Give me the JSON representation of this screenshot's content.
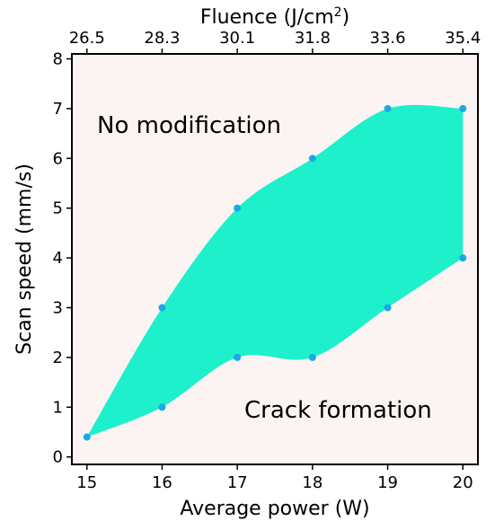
{
  "chart_data": {
    "type": "area",
    "xlabel": "Average power (W)",
    "ylabel": "Scan speed (mm/s)",
    "top_axis_label": "Fluence (J/cm",
    "top_axis_label_sup": "2",
    "top_axis_label_end": ")",
    "xlim": [
      14.8,
      20.2
    ],
    "ylim": [
      -0.15,
      8.1
    ],
    "x_ticks": [
      15,
      16,
      17,
      18,
      19,
      20
    ],
    "y_ticks": [
      0,
      1,
      2,
      3,
      4,
      5,
      6,
      7,
      8
    ],
    "top_ticks": [
      "26.5",
      "28.3",
      "30.1",
      "31.8",
      "33.6",
      "35.4"
    ],
    "upper_boundary": [
      {
        "x": 15,
        "y": 0.4
      },
      {
        "x": 16,
        "y": 3
      },
      {
        "x": 17,
        "y": 5
      },
      {
        "x": 18,
        "y": 6
      },
      {
        "x": 19,
        "y": 7
      },
      {
        "x": 20,
        "y": 7
      }
    ],
    "lower_boundary": [
      {
        "x": 15,
        "y": 0.4
      },
      {
        "x": 16,
        "y": 1
      },
      {
        "x": 17,
        "y": 2
      },
      {
        "x": 18,
        "y": 2
      },
      {
        "x": 19,
        "y": 3
      },
      {
        "x": 20,
        "y": 4
      }
    ],
    "annotations": {
      "above": "No modification",
      "below": "Crack formation"
    },
    "grid": false,
    "colors": {
      "fill": "#1ef0cc",
      "marker": "#1aa8e8",
      "plot_bg": "#fcf4f3"
    }
  }
}
